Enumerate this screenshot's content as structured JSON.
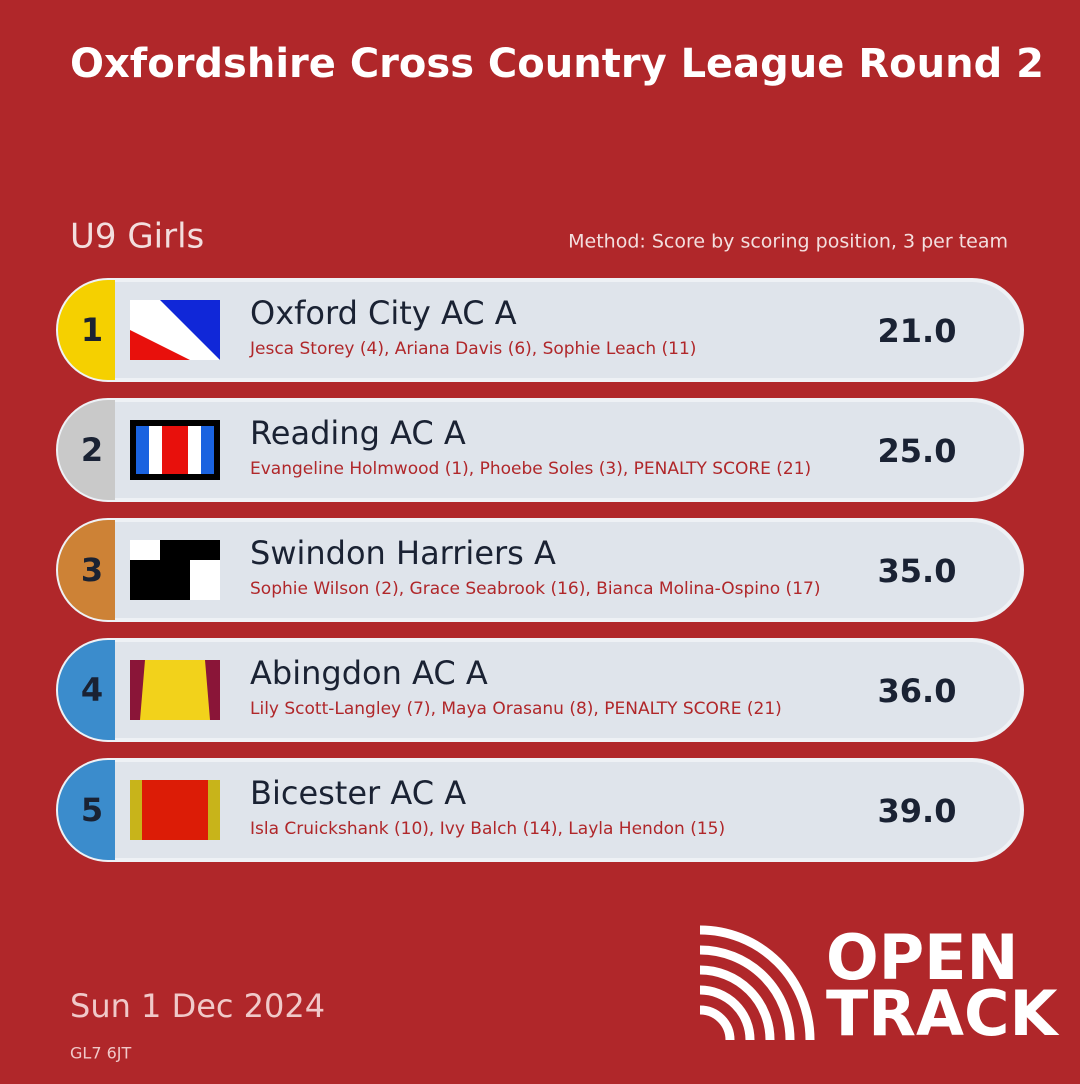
{
  "header": {
    "title": "Oxfordshire Cross Country League Round 2",
    "event": "U9 Girls",
    "method": "Method: Score by scoring position, 3 per team"
  },
  "results": [
    {
      "position": "1",
      "team": "Oxford City AC A",
      "athletes": "Jesca Storey (4), Ariana Davis (6), Sophie Leach (11)",
      "score": "21.0"
    },
    {
      "position": "2",
      "team": "Reading AC A",
      "athletes": "Evangeline Holmwood (1), Phoebe Soles (3), PENALTY SCORE (21)",
      "score": "25.0"
    },
    {
      "position": "3",
      "team": "Swindon Harriers A",
      "athletes": "Sophie Wilson (2), Grace Seabrook (16), Bianca Molina-Ospino (17)",
      "score": "35.0"
    },
    {
      "position": "4",
      "team": "Abingdon AC A",
      "athletes": "Lily Scott-Langley (7), Maya Orasanu (8), PENALTY SCORE (21)",
      "score": "36.0"
    },
    {
      "position": "5",
      "team": "Bicester AC A",
      "athletes": "Isla Cruickshank (10), Ivy Balch (14), Layla Hendon (15)",
      "score": "39.0"
    }
  ],
  "footer": {
    "date": "Sun 1 Dec 2024",
    "postcode": "GL7 6JT",
    "logo_top": "OPEN",
    "logo_bottom": "TRACK"
  }
}
